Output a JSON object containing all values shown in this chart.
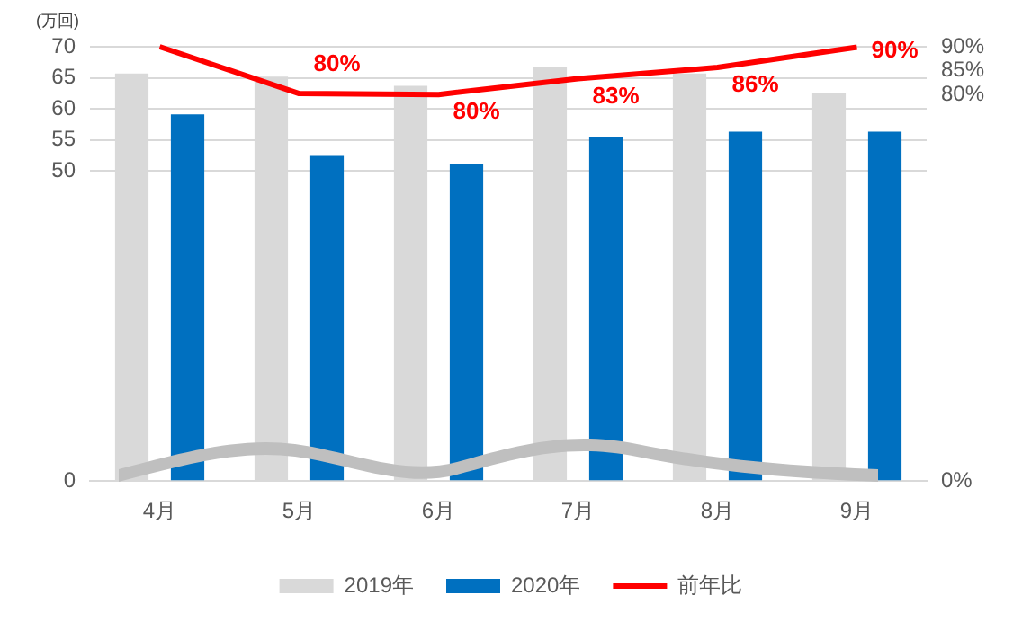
{
  "chart_data": {
    "type": "bar",
    "ylabel": "(万回)",
    "categories": [
      "4月",
      "5月",
      "6月",
      "7月",
      "8月",
      "9月"
    ],
    "series": [
      {
        "name": "2019年",
        "color": "#d9d9d9",
        "values": [
          65.7,
          65.2,
          63.7,
          66.8,
          65.7,
          62.6
        ]
      },
      {
        "name": "2020年",
        "color": "#0070c0",
        "values": [
          59.1,
          52.4,
          51.1,
          55.5,
          56.3,
          56.3
        ]
      },
      {
        "name": "前年比",
        "type": "line",
        "axis": "y2",
        "color": "#ff0000",
        "values": [
          90,
          80.3,
          80.1,
          83.4,
          85.7,
          89.9
        ],
        "value_labels": [
          null,
          "80%",
          "80%",
          "83%",
          "86%",
          "90%"
        ]
      }
    ],
    "ylim": [
      0,
      70
    ],
    "yticks": [
      0,
      50,
      55,
      60,
      65,
      70
    ],
    "y2lim": [
      0,
      90
    ],
    "y2ticks": [
      {
        "value": 0,
        "label": "0%"
      },
      {
        "value": 80,
        "label": "80%"
      },
      {
        "value": 85,
        "label": "85%"
      },
      {
        "value": 90,
        "label": "90%"
      }
    ],
    "grid": "y",
    "legend": "bottom",
    "marker": "none"
  }
}
